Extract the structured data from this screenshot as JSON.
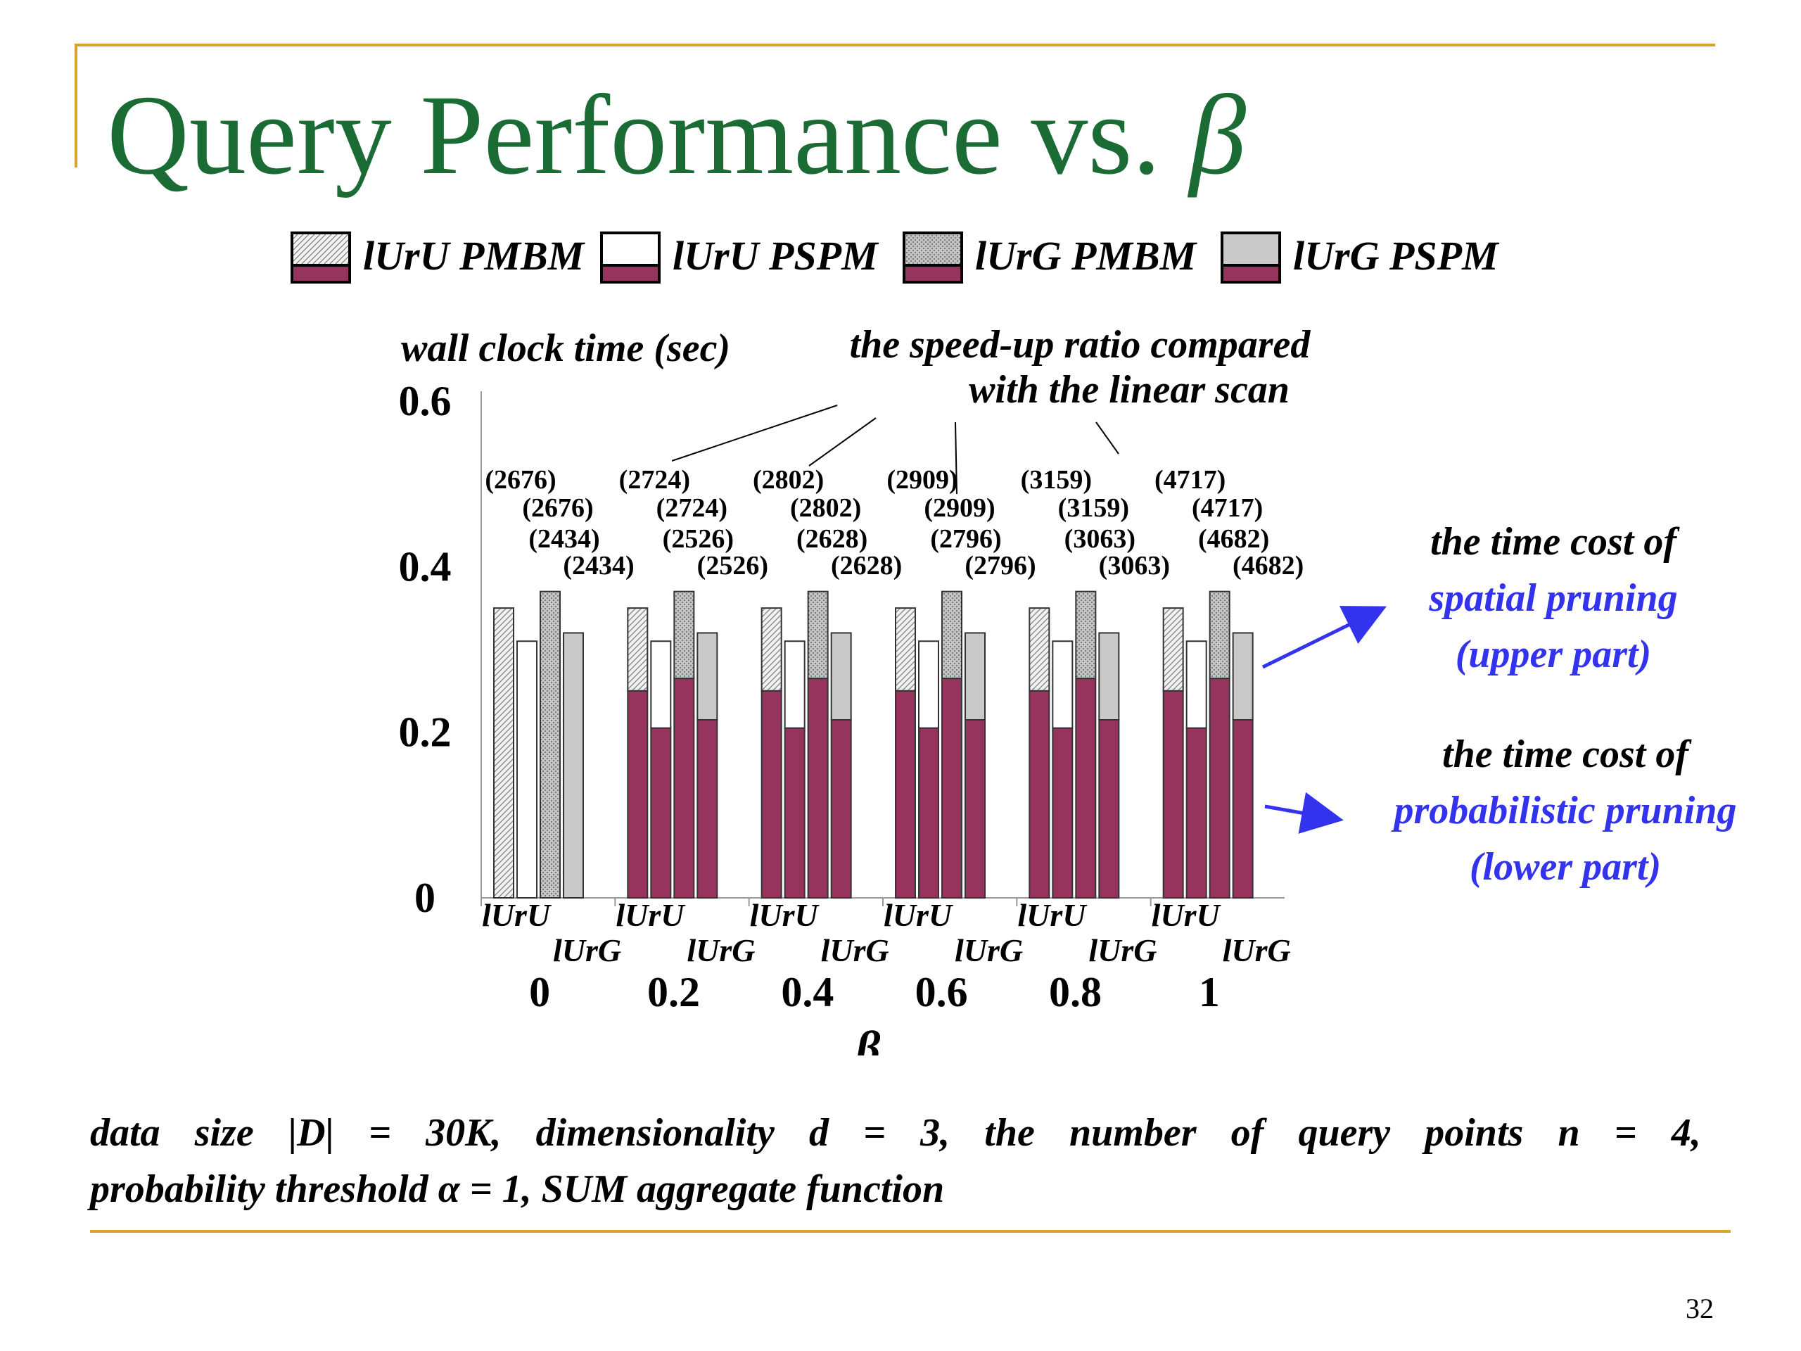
{
  "slide": {
    "title_text": "Query Performance vs. ",
    "title_symbol": "β",
    "page_number": "32"
  },
  "colors": {
    "accent_rule": "#d8a52a",
    "title": "#1a6b34",
    "annotation_blue": "#3333ee",
    "lower_part": "#96345e",
    "bar_outline": "#333333",
    "pspm_upper_lurg": "#c9c9c9",
    "pspm_upper_luru": "#ffffff"
  },
  "legend": [
    {
      "label": "lUrU PMBM",
      "fill": "hatch-light"
    },
    {
      "label": "lUrU PSPM",
      "fill": "white"
    },
    {
      "label": "lUrG PMBM",
      "fill": "dots-gray"
    },
    {
      "label": "lUrG PSPM",
      "fill": "gray"
    }
  ],
  "chart_data": {
    "type": "bar",
    "stacked": true,
    "ylabel": "wall clock time (sec)",
    "xlabel": "β",
    "ylim": [
      0,
      0.6
    ],
    "yticks": [
      "0",
      "0.2",
      "0.4",
      "0.6"
    ],
    "categories": [
      "0",
      "0.2",
      "0.4",
      "0.6",
      "0.8",
      "1"
    ],
    "subcategory_labels": [
      "lUrU",
      "lUrG"
    ],
    "series": [
      {
        "name": "lUrU PMBM",
        "lower": [
          0,
          0.25,
          0.25,
          0.25,
          0.25,
          0.25
        ],
        "total": [
          0.35,
          0.35,
          0.35,
          0.35,
          0.35,
          0.35
        ],
        "speedup": [
          "(2676)",
          "(2724)",
          "(2802)",
          "(2909)",
          "(3159)",
          "(4717)"
        ]
      },
      {
        "name": "lUrU PSPM",
        "lower": [
          0,
          0.205,
          0.205,
          0.205,
          0.205,
          0.205
        ],
        "total": [
          0.31,
          0.31,
          0.31,
          0.31,
          0.31,
          0.31
        ],
        "speedup": [
          "(2676)",
          "(2724)",
          "(2802)",
          "(2909)",
          "(3159)",
          "(4717)"
        ]
      },
      {
        "name": "lUrG PMBM",
        "lower": [
          0,
          0.265,
          0.265,
          0.265,
          0.265,
          0.265
        ],
        "total": [
          0.37,
          0.37,
          0.37,
          0.37,
          0.37,
          0.37
        ],
        "speedup": [
          "(2434)",
          "(2526)",
          "(2628)",
          "(2796)",
          "(3063)",
          "(4682)"
        ]
      },
      {
        "name": "lUrG PSPM",
        "lower": [
          0,
          0.215,
          0.215,
          0.215,
          0.215,
          0.215
        ],
        "total": [
          0.32,
          0.32,
          0.32,
          0.32,
          0.32,
          0.32
        ],
        "speedup": [
          "(2434)",
          "(2526)",
          "(2628)",
          "(2796)",
          "(3063)",
          "(4682)"
        ]
      }
    ],
    "annotations": {
      "speedup_title_line1": "the speed-up ratio compared",
      "speedup_title_line2": "with the linear scan",
      "upper_line1": "the time cost of",
      "upper_line2": "spatial pruning",
      "upper_line3": "(upper part)",
      "lower_line1": "the time cost of",
      "lower_line2": "probabilistic pruning",
      "lower_line3": "(lower part)"
    }
  },
  "footer": {
    "line1": [
      "data",
      "size",
      "|D|",
      "=",
      "30K,",
      "dimensionality",
      "d",
      "=",
      "3,",
      "the",
      "number",
      "of",
      "query",
      "points",
      "n",
      "=",
      "4,"
    ],
    "line2": "probability threshold α = 1, SUM aggregate function"
  }
}
